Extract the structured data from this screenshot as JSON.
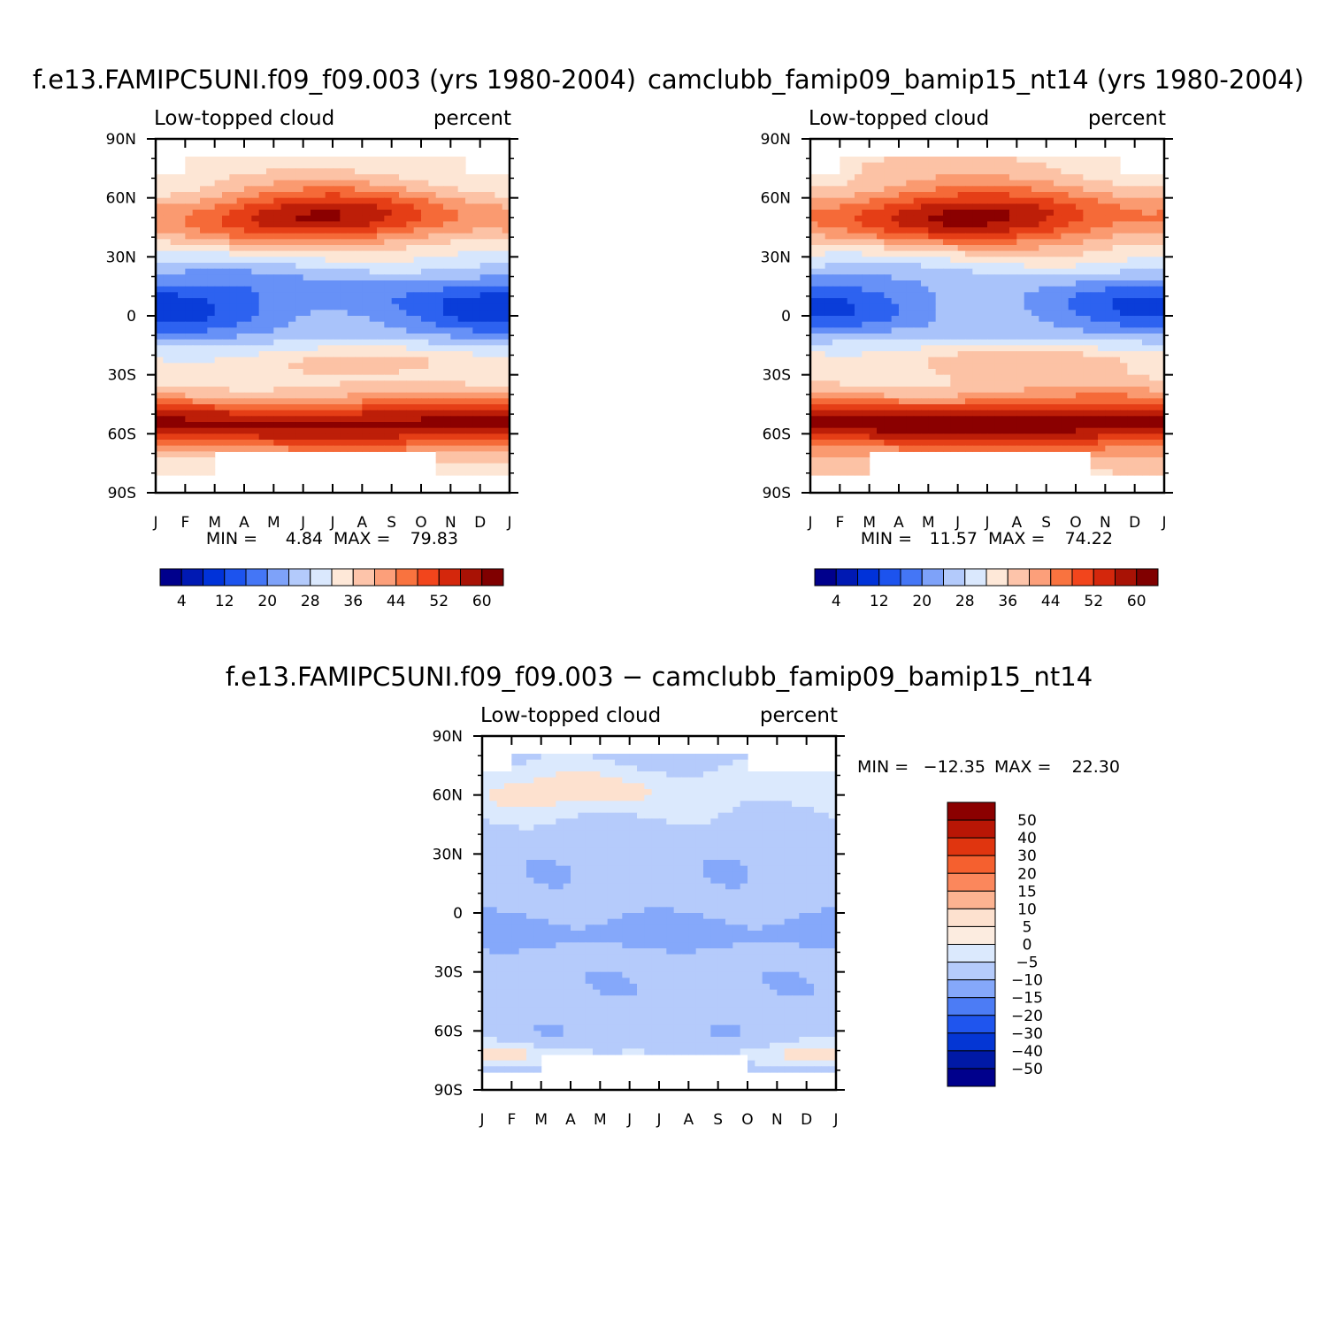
{
  "chart_data": [
    {
      "type": "heatmap",
      "title": "f.e13.FAMIPC5UNI.f09_f09.003 (yrs 1980-2004)",
      "subtitle_left": "Low-topped cloud",
      "subtitle_right": "percent",
      "x_ticks": [
        "J",
        "F",
        "M",
        "A",
        "M",
        "J",
        "J",
        "A",
        "S",
        "O",
        "N",
        "D",
        "J"
      ],
      "y_ticks": [
        "90N",
        "60N",
        "30N",
        "0",
        "30S",
        "60S",
        "90S"
      ],
      "y_range": [
        -90,
        90
      ],
      "min_label": "MIN =",
      "min_value": "4.84",
      "max_label": "MAX =",
      "max_value": "79.83",
      "colorbar_levels": [
        "4",
        "12",
        "20",
        "28",
        "36",
        "44",
        "52",
        "60"
      ],
      "colorbar_colors": [
        "#00008c",
        "#0019b3",
        "#0032d9",
        "#1c53ee",
        "#4476f6",
        "#7ea2f9",
        "#b3cafb",
        "#dae8fd",
        "#fee8d8",
        "#fdc4aa",
        "#fc9f7a",
        "#f9733f",
        "#f2451c",
        "#d4270c",
        "#a81205",
        "#800000"
      ],
      "palette": [
        "#0019b3",
        "#0a3dd9",
        "#2d62f0",
        "#6791f7",
        "#a9c3fa",
        "#d6e6fd",
        "#fde6d5",
        "#fcc2a5",
        "#fa9a70",
        "#f56a38",
        "#e53e16",
        "#bd1e08",
        "#8b0000"
      ],
      "seed": 11,
      "mean": 34,
      "scale": 20
    },
    {
      "type": "heatmap",
      "title": "camclubb_famip09_bamip15_nt14 (yrs 1980-2004)",
      "subtitle_left": "Low-topped cloud",
      "subtitle_right": "percent",
      "x_ticks": [
        "J",
        "F",
        "M",
        "A",
        "M",
        "J",
        "J",
        "A",
        "S",
        "O",
        "N",
        "D",
        "J"
      ],
      "y_ticks": [
        "90N",
        "60N",
        "30N",
        "0",
        "30S",
        "60S",
        "90S"
      ],
      "y_range": [
        -90,
        90
      ],
      "min_label": "MIN =",
      "min_value": "11.57",
      "max_label": "MAX =",
      "max_value": "74.22",
      "colorbar_levels": [
        "4",
        "12",
        "20",
        "28",
        "36",
        "44",
        "52",
        "60"
      ],
      "colorbar_colors": [
        "#00008c",
        "#0019b3",
        "#0032d9",
        "#1c53ee",
        "#4476f6",
        "#7ea2f9",
        "#b3cafb",
        "#dae8fd",
        "#fee8d8",
        "#fdc4aa",
        "#fc9f7a",
        "#f9733f",
        "#f2451c",
        "#d4270c",
        "#a81205",
        "#800000"
      ],
      "palette": [
        "#0019b3",
        "#0a3dd9",
        "#2d62f0",
        "#6791f7",
        "#a9c3fa",
        "#d6e6fd",
        "#fde6d5",
        "#fcc2a5",
        "#fa9a70",
        "#f56a38",
        "#e53e16",
        "#bd1e08",
        "#8b0000"
      ],
      "seed": 23,
      "mean": 36,
      "scale": 18
    },
    {
      "type": "heatmap",
      "title": "f.e13.FAMIPC5UNI.f09_f09.003 − camclubb_famip09_bamip15_nt14",
      "subtitle_left": "Low-topped cloud",
      "subtitle_right": "percent",
      "x_ticks": [
        "J",
        "F",
        "M",
        "A",
        "M",
        "J",
        "J",
        "A",
        "S",
        "O",
        "N",
        "D",
        "J"
      ],
      "y_ticks": [
        "90N",
        "60N",
        "30N",
        "0",
        "30S",
        "60S",
        "90S"
      ],
      "y_range": [
        -90,
        90
      ],
      "min_label": "MIN =",
      "min_value": "−12.35",
      "max_label": "MAX =",
      "max_value": "22.30",
      "colorbar_levels": [
        "50",
        "40",
        "30",
        "20",
        "15",
        "10",
        "5",
        "0",
        "−5",
        "−10",
        "−15",
        "−20",
        "−30",
        "−40",
        "−50"
      ],
      "colorbar_colors": [
        "#8b0000",
        "#b81605",
        "#e0350f",
        "#f5602f",
        "#fb875c",
        "#fcb391",
        "#fde1cf",
        "#fcece0",
        "#dbe9fd",
        "#b5cbfb",
        "#85a8fa",
        "#4c7cf5",
        "#1f55ee",
        "#0436d4",
        "#0019a6",
        "#00008c"
      ],
      "palette": [
        "#4c7cf5",
        "#85a8fa",
        "#b5cbfb",
        "#dbe9fd",
        "#fde1cf",
        "#fcb391",
        "#fb875c"
      ],
      "seed": 37,
      "mean": 0,
      "scale": 5
    }
  ]
}
